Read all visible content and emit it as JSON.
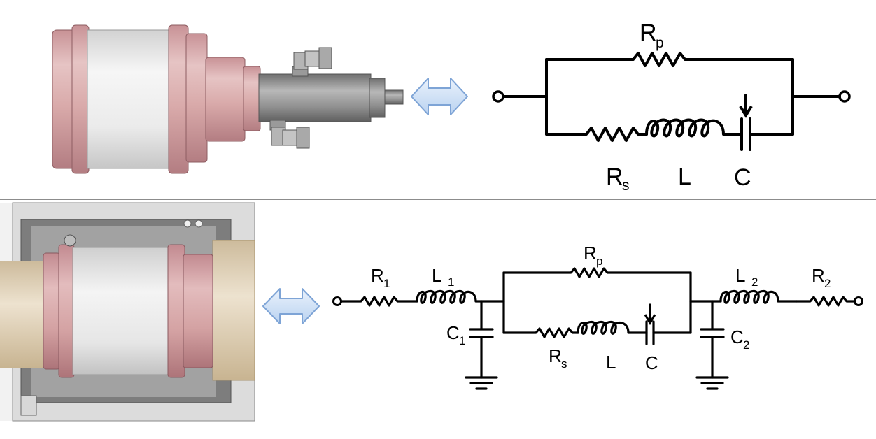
{
  "top_circuit": {
    "parallel_resistor": {
      "symbol": "R",
      "subscript": "p"
    },
    "series_resistor": {
      "symbol": "R",
      "subscript": "s"
    },
    "inductor": {
      "symbol": "L"
    },
    "capacitor": {
      "symbol": "C"
    }
  },
  "bottom_circuit": {
    "input_resistor": {
      "symbol": "R",
      "subscript": "1"
    },
    "input_inductor": {
      "symbol": "L",
      "subscript": "1"
    },
    "input_shunt_capacitor": {
      "symbol": "C",
      "subscript": "1"
    },
    "parallel_resistor": {
      "symbol": "R",
      "subscript": "p"
    },
    "series_resistor": {
      "symbol": "R",
      "subscript": "s"
    },
    "inductor": {
      "symbol": "L"
    },
    "capacitor": {
      "symbol": "C"
    },
    "output_inductor": {
      "symbol": "L",
      "subscript": "2"
    },
    "output_resistor": {
      "symbol": "R",
      "subscript": "2"
    },
    "output_shunt_capacitor": {
      "symbol": "C",
      "subscript": "2"
    }
  },
  "colors": {
    "flange": "#d4a5a5",
    "flange_dark": "#a86e72",
    "ceramic_body": "#e6e6e6",
    "metal_shaft": "#8a8a8a",
    "housing": "#9b9b9b",
    "brass": "#e2d4bd",
    "arrow_fill": "#cfe1f6",
    "arrow_stroke": "#7ea4d6",
    "divider": "#8c8c8c"
  },
  "icons": [
    "double-arrow-icon",
    "ground-icon",
    "variable-capacitor-icon",
    "terminal-icon"
  ]
}
